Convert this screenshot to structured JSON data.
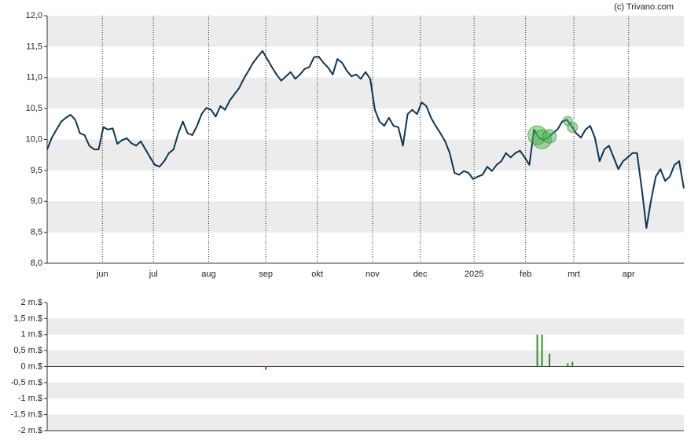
{
  "credit": "(c) Trivano.com",
  "chart_data": [
    {
      "type": "line",
      "color": "#0d3552",
      "values": [
        9.84,
        10.03,
        10.16,
        10.29,
        10.35,
        10.4,
        10.32,
        10.1,
        10.07,
        9.9,
        9.84,
        9.84,
        10.2,
        10.16,
        10.18,
        9.93,
        9.99,
        10.02,
        9.94,
        9.9,
        9.97,
        9.84,
        9.71,
        9.59,
        9.56,
        9.65,
        9.78,
        9.84,
        10.1,
        10.29,
        10.1,
        10.07,
        10.22,
        10.41,
        10.51,
        10.48,
        10.37,
        10.54,
        10.48,
        10.63,
        10.73,
        10.83,
        10.98,
        11.11,
        11.24,
        11.34,
        11.43,
        11.3,
        11.17,
        11.05,
        10.95,
        11.02,
        11.09,
        10.98,
        11.05,
        11.14,
        11.17,
        11.33,
        11.34,
        11.24,
        11.16,
        11.05,
        11.3,
        11.24,
        11.11,
        11.02,
        11.05,
        10.98,
        11.09,
        10.98,
        10.48,
        10.29,
        10.22,
        10.35,
        10.22,
        10.2,
        9.9,
        10.41,
        10.48,
        10.41,
        10.6,
        10.54,
        10.35,
        10.22,
        10.1,
        9.97,
        9.78,
        9.46,
        9.43,
        9.49,
        9.46,
        9.36,
        9.4,
        9.43,
        9.56,
        9.49,
        9.59,
        9.65,
        9.78,
        9.71,
        9.78,
        9.82,
        9.71,
        9.59,
        10.16,
        10.03,
        9.99,
        10.03,
        10.1,
        10.16,
        10.29,
        10.32,
        10.22,
        10.1,
        10.03,
        10.16,
        10.22,
        10.03,
        9.65,
        9.84,
        9.9,
        9.71,
        9.52,
        9.65,
        9.71,
        9.78,
        9.78,
        9.21,
        8.57,
        9.02,
        9.4,
        9.52,
        9.33,
        9.4,
        9.59,
        9.65,
        9.21
      ],
      "xlim": [
        0,
        136
      ],
      "xticks": [
        {
          "value": 11.8,
          "label": "jun"
        },
        {
          "value": 22.7,
          "label": "jul"
        },
        {
          "value": 34.5,
          "label": "aug"
        },
        {
          "value": 46.7,
          "label": "sep"
        },
        {
          "value": 57.7,
          "label": "okt"
        },
        {
          "value": 69.5,
          "label": "nov"
        },
        {
          "value": 79.7,
          "label": "dec"
        },
        {
          "value": 91.2,
          "label": "2025"
        },
        {
          "value": 102.2,
          "label": "feb"
        },
        {
          "value": 112.5,
          "label": "mrt"
        },
        {
          "value": 124.2,
          "label": "apr"
        }
      ],
      "ylim": [
        8,
        12
      ],
      "yticks": [
        {
          "value": 12,
          "label": "12,0"
        },
        {
          "value": 11.5,
          "label": "11,5"
        },
        {
          "value": 11,
          "label": "11,0"
        },
        {
          "value": 10.5,
          "label": "10,5"
        },
        {
          "value": 10,
          "label": "10,0"
        },
        {
          "value": 9.5,
          "label": "9,5"
        },
        {
          "value": 9,
          "label": "9,0"
        },
        {
          "value": 8.5,
          "label": "8,5"
        },
        {
          "value": 8,
          "label": "8,0"
        }
      ],
      "grid": true
    },
    {
      "type": "bar",
      "x": [
        46.7,
        104.7,
        105.7,
        107.3,
        111.2,
        112.2
      ],
      "values": [
        -0.1,
        1.0,
        1.0,
        0.4,
        0.1,
        0.15
      ],
      "colors": [
        "#d62728",
        "#2e8b2e",
        "#2e8b2e",
        "#2e8b2e",
        "#2e8b2e",
        "#2e8b2e"
      ],
      "xlim": [
        0,
        136
      ],
      "ylim": [
        -2,
        2
      ],
      "yticks": [
        {
          "value": 2,
          "label": "2 m.$"
        },
        {
          "value": 1.5,
          "label": "1,5 m.$"
        },
        {
          "value": 1,
          "label": "1 m.$"
        },
        {
          "value": 0.5,
          "label": "0,5 m.$"
        },
        {
          "value": 0,
          "label": "0 m.$"
        },
        {
          "value": -0.5,
          "label": "-0,5 m.$"
        },
        {
          "value": -1,
          "label": "-1 m.$"
        },
        {
          "value": -1.5,
          "label": "-1,5 m.$"
        },
        {
          "value": -2,
          "label": "-2 m.$"
        }
      ],
      "grid": true
    }
  ]
}
